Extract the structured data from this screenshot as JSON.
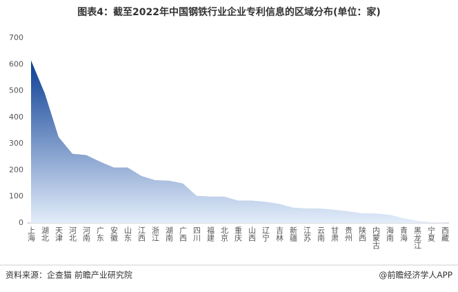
{
  "chart_data": {
    "type": "area",
    "title": "图表4：截至2022年中国钢铁行业企业专利信息的区域分布(单位：家)",
    "categories": [
      "上海",
      "湖北",
      "天津",
      "河北",
      "河南",
      "广东",
      "安徽",
      "山东",
      "江西",
      "浙江",
      "湖南",
      "广西",
      "四川",
      "福建",
      "北京",
      "重庆",
      "山西",
      "辽宁",
      "吉林",
      "新疆",
      "江苏",
      "云南",
      "甘肃",
      "贵州",
      "陕西",
      "内蒙古",
      "海南",
      "青海",
      "黑龙江",
      "宁夏",
      "西藏"
    ],
    "values": [
      615,
      490,
      325,
      262,
      257,
      232,
      210,
      210,
      178,
      162,
      160,
      150,
      103,
      100,
      100,
      85,
      85,
      80,
      72,
      58,
      55,
      55,
      50,
      44,
      37,
      36,
      31,
      18,
      8,
      3,
      2
    ],
    "color_top": "#0b3e94",
    "color_bottom": "#e3edfa",
    "ylim": [
      0,
      700
    ],
    "yticks": [
      0,
      100,
      200,
      300,
      400,
      500,
      600,
      700
    ],
    "source": "资料来源：企查猫 前瞻产业研究院",
    "credit": "@前瞻经济学人APP"
  }
}
